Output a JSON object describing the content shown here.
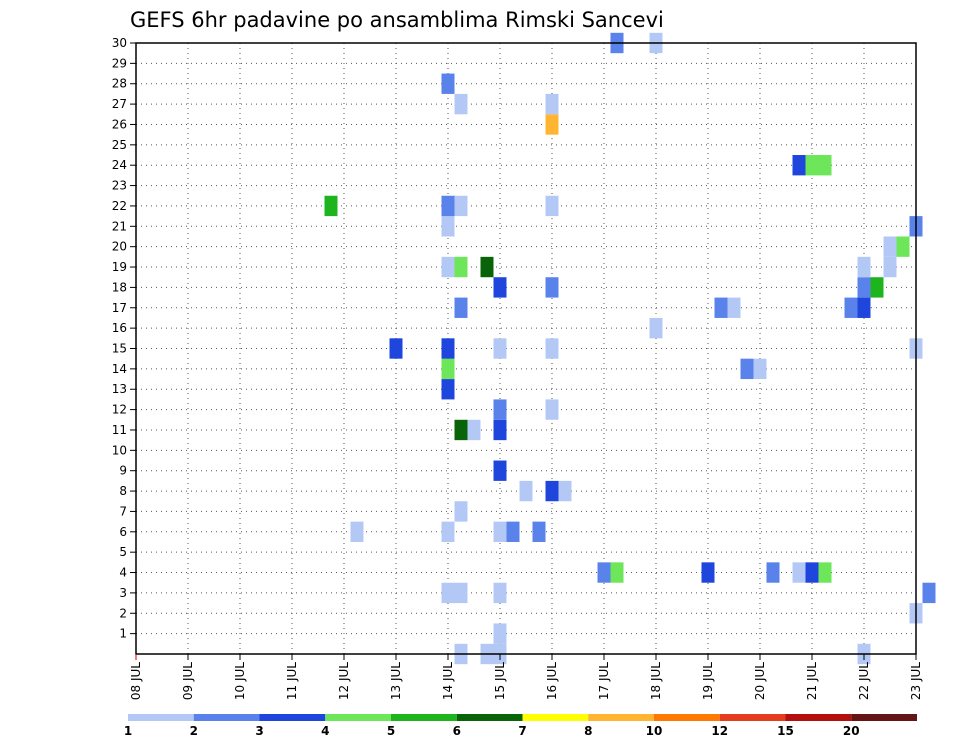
{
  "chart_data": {
    "type": "heatmap",
    "title": "GEFS 6hr padavine po ansamblima Rimski Sancevi",
    "xlabel": "",
    "ylabel": "",
    "x_ticks": [
      "08 JUL",
      "09 JUL",
      "10 JUL",
      "11 JUL",
      "12 JUL",
      "13 JUL",
      "14 JUL",
      "15 JUL",
      "16 JUL",
      "17 JUL",
      "18 JUL",
      "19 JUL",
      "20 JUL",
      "21 JUL",
      "22 JUL",
      "23 JUL"
    ],
    "y_ticks": [
      "1",
      "2",
      "3",
      "4",
      "5",
      "6",
      "7",
      "8",
      "9",
      "10",
      "11",
      "12",
      "13",
      "14",
      "15",
      "16",
      "17",
      "18",
      "19",
      "20",
      "21",
      "22",
      "23",
      "24",
      "25",
      "26",
      "27",
      "28",
      "29",
      "30"
    ],
    "y_range": [
      0,
      30
    ],
    "x_range_days": [
      8,
      23
    ],
    "grid": true,
    "colorbar": {
      "ticks": [
        "1",
        "2",
        "3",
        "4",
        "5",
        "6",
        "7",
        "8",
        "10",
        "12",
        "15",
        "20"
      ],
      "colors": [
        "#b4c8f5",
        "#5a82eb",
        "#1e46dc",
        "#6ee65a",
        "#1eb41e",
        "#096409",
        "#ffff00",
        "#ffb432",
        "#ff7800",
        "#e63c1e",
        "#b40f0f",
        "#641414"
      ]
    },
    "cells": [
      {
        "day": 14.25,
        "member": 0,
        "bin": 1
      },
      {
        "day": 14.75,
        "member": 0,
        "bin": 1
      },
      {
        "day": 15.0,
        "member": 0,
        "bin": 1
      },
      {
        "day": 22.0,
        "member": 0,
        "bin": 1
      },
      {
        "day": 15.0,
        "member": 1,
        "bin": 1
      },
      {
        "day": 23.0,
        "member": 2,
        "bin": 1
      },
      {
        "day": 14.0,
        "member": 3,
        "bin": 1
      },
      {
        "day": 14.25,
        "member": 3,
        "bin": 1
      },
      {
        "day": 15.0,
        "member": 3,
        "bin": 1
      },
      {
        "day": 23.25,
        "member": 3,
        "bin": 2
      },
      {
        "day": 17.0,
        "member": 4,
        "bin": 2
      },
      {
        "day": 17.25,
        "member": 4,
        "bin": 4
      },
      {
        "day": 19.0,
        "member": 4,
        "bin": 3
      },
      {
        "day": 20.25,
        "member": 4,
        "bin": 2
      },
      {
        "day": 20.75,
        "member": 4,
        "bin": 1
      },
      {
        "day": 21.0,
        "member": 4,
        "bin": 3
      },
      {
        "day": 21.25,
        "member": 4,
        "bin": 4
      },
      {
        "day": 12.25,
        "member": 6,
        "bin": 1
      },
      {
        "day": 14.0,
        "member": 6,
        "bin": 1
      },
      {
        "day": 15.0,
        "member": 6,
        "bin": 1
      },
      {
        "day": 15.25,
        "member": 6,
        "bin": 2
      },
      {
        "day": 15.75,
        "member": 6,
        "bin": 2
      },
      {
        "day": 14.25,
        "member": 7,
        "bin": 1
      },
      {
        "day": 15.5,
        "member": 8,
        "bin": 1
      },
      {
        "day": 16.0,
        "member": 8,
        "bin": 3
      },
      {
        "day": 16.25,
        "member": 8,
        "bin": 1
      },
      {
        "day": 15.0,
        "member": 9,
        "bin": 3
      },
      {
        "day": 14.25,
        "member": 11,
        "bin": 6
      },
      {
        "day": 14.5,
        "member": 11,
        "bin": 1
      },
      {
        "day": 15.0,
        "member": 11,
        "bin": 3
      },
      {
        "day": 15.0,
        "member": 12,
        "bin": 2
      },
      {
        "day": 16.0,
        "member": 12,
        "bin": 1
      },
      {
        "day": 14.0,
        "member": 13,
        "bin": 3
      },
      {
        "day": 14.0,
        "member": 14,
        "bin": 4
      },
      {
        "day": 19.75,
        "member": 14,
        "bin": 2
      },
      {
        "day": 20.0,
        "member": 14,
        "bin": 1
      },
      {
        "day": 13.0,
        "member": 15,
        "bin": 3
      },
      {
        "day": 14.0,
        "member": 15,
        "bin": 3
      },
      {
        "day": 15.0,
        "member": 15,
        "bin": 1
      },
      {
        "day": 16.0,
        "member": 15,
        "bin": 1
      },
      {
        "day": 23.0,
        "member": 15,
        "bin": 1
      },
      {
        "day": 18.0,
        "member": 16,
        "bin": 1
      },
      {
        "day": 14.25,
        "member": 17,
        "bin": 2
      },
      {
        "day": 19.25,
        "member": 17,
        "bin": 2
      },
      {
        "day": 19.5,
        "member": 17,
        "bin": 1
      },
      {
        "day": 21.75,
        "member": 17,
        "bin": 2
      },
      {
        "day": 22.0,
        "member": 17,
        "bin": 3
      },
      {
        "day": 15.0,
        "member": 18,
        "bin": 3
      },
      {
        "day": 16.0,
        "member": 18,
        "bin": 2
      },
      {
        "day": 22.0,
        "member": 18,
        "bin": 2
      },
      {
        "day": 22.25,
        "member": 18,
        "bin": 5
      },
      {
        "day": 14.0,
        "member": 19,
        "bin": 1
      },
      {
        "day": 14.25,
        "member": 19,
        "bin": 4
      },
      {
        "day": 14.75,
        "member": 19,
        "bin": 6
      },
      {
        "day": 22.0,
        "member": 19,
        "bin": 1
      },
      {
        "day": 22.5,
        "member": 19,
        "bin": 1
      },
      {
        "day": 22.5,
        "member": 20,
        "bin": 1
      },
      {
        "day": 22.75,
        "member": 20,
        "bin": 4
      },
      {
        "day": 14.0,
        "member": 21,
        "bin": 1
      },
      {
        "day": 23.0,
        "member": 21,
        "bin": 2
      },
      {
        "day": 11.75,
        "member": 22,
        "bin": 5
      },
      {
        "day": 14.0,
        "member": 22,
        "bin": 2
      },
      {
        "day": 14.25,
        "member": 22,
        "bin": 1
      },
      {
        "day": 16.0,
        "member": 22,
        "bin": 1
      },
      {
        "day": 20.75,
        "member": 24,
        "bin": 3
      },
      {
        "day": 21.0,
        "member": 24,
        "bin": 4
      },
      {
        "day": 21.25,
        "member": 24,
        "bin": 4
      },
      {
        "day": 16.0,
        "member": 26,
        "bin": 8
      },
      {
        "day": 14.25,
        "member": 27,
        "bin": 1
      },
      {
        "day": 16.0,
        "member": 27,
        "bin": 1
      },
      {
        "day": 14.0,
        "member": 28,
        "bin": 2
      },
      {
        "day": 17.25,
        "member": 30,
        "bin": 2
      },
      {
        "day": 18.0,
        "member": 30,
        "bin": 1
      }
    ]
  }
}
